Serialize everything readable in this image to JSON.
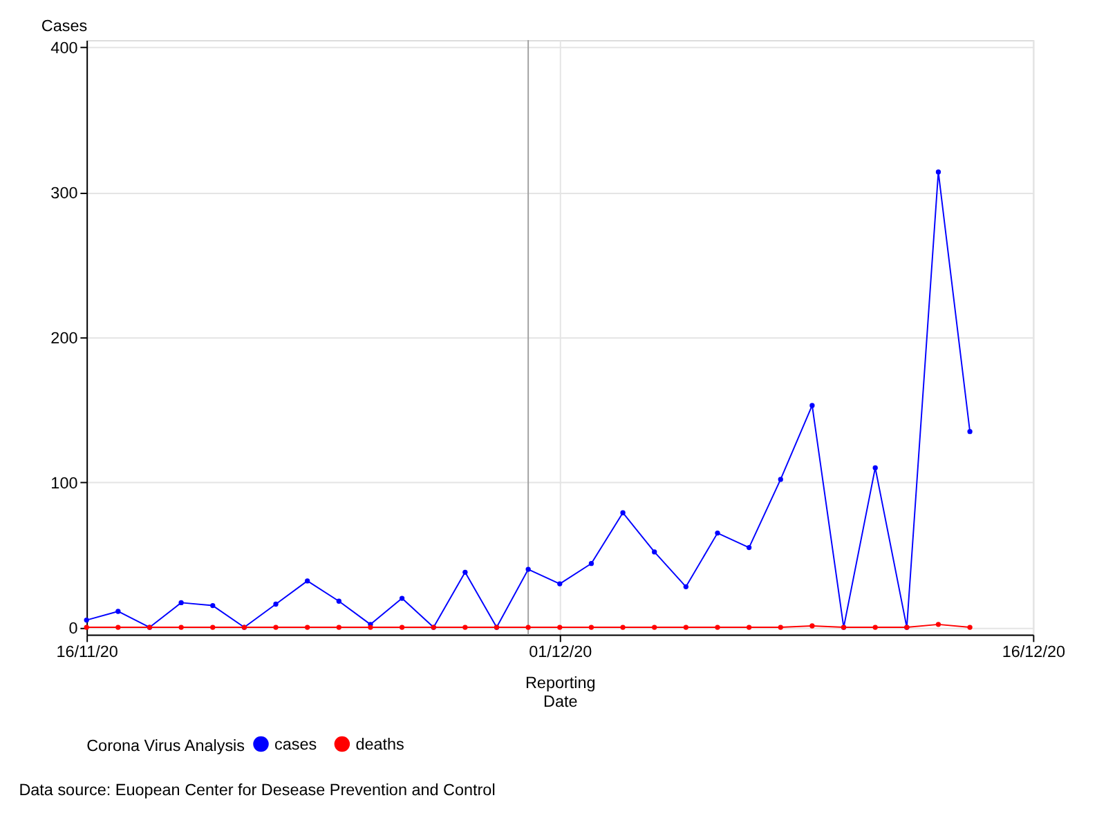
{
  "chart_data": {
    "type": "line",
    "ylabel": "Cases",
    "xlabel": "Reporting Date",
    "legend_title": "Corona Virus Analysis",
    "x": [
      "2020-11-16",
      "2020-11-17",
      "2020-11-18",
      "2020-11-19",
      "2020-11-20",
      "2020-11-21",
      "2020-11-22",
      "2020-11-23",
      "2020-11-24",
      "2020-11-25",
      "2020-11-26",
      "2020-11-27",
      "2020-11-28",
      "2020-11-29",
      "2020-11-30",
      "2020-12-01",
      "2020-12-02",
      "2020-12-03",
      "2020-12-04",
      "2020-12-05",
      "2020-12-06",
      "2020-12-07",
      "2020-12-08",
      "2020-12-09",
      "2020-12-10",
      "2020-12-11",
      "2020-12-12",
      "2020-12-13",
      "2020-12-14"
    ],
    "series": [
      {
        "name": "cases",
        "color": "#0000ff",
        "values": [
          5,
          11,
          0,
          17,
          15,
          0,
          16,
          32,
          18,
          2,
          20,
          0,
          38,
          0,
          40,
          30,
          44,
          79,
          52,
          28,
          65,
          55,
          102,
          153,
          0,
          110,
          0,
          314,
          135
        ]
      },
      {
        "name": "deaths",
        "color": "#ff0000",
        "values": [
          0,
          0,
          0,
          0,
          0,
          0,
          0,
          0,
          0,
          0,
          0,
          0,
          0,
          0,
          0,
          0,
          0,
          0,
          0,
          0,
          0,
          0,
          0,
          1,
          0,
          0,
          0,
          2,
          0
        ]
      }
    ],
    "xlim": [
      "2020-11-16",
      "2020-12-16"
    ],
    "xticks": [
      {
        "value": "2020-11-16",
        "label": "16/11/20"
      },
      {
        "value": "2020-12-01",
        "label": "01/12/20"
      },
      {
        "value": "2020-12-16",
        "label": "16/12/20"
      }
    ],
    "ylim": [
      -5,
      405
    ],
    "yticks": [
      0,
      100,
      200,
      300,
      400
    ],
    "ref_lines": [
      {
        "axis": "x",
        "value": "2020-11-30",
        "label": null,
        "color": "#a0a0a0"
      }
    ],
    "grid": true,
    "legend": "bottom",
    "marker": "circle",
    "line_style": "solid",
    "annotations": [
      "Data source: Euopean Center for Desease Prevention and Control"
    ]
  }
}
